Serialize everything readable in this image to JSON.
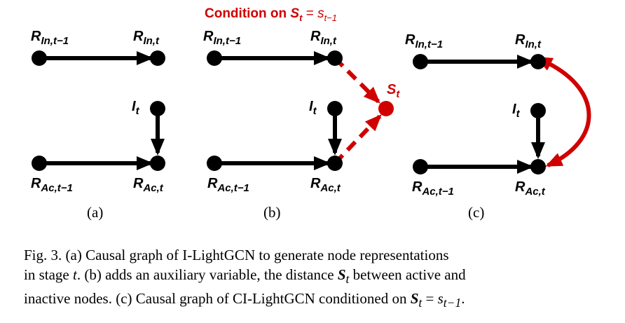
{
  "labels": {
    "r_in_prev": "R",
    "r_in_prev_sub": "In,t−1",
    "r_in_cur": "R",
    "r_in_cur_sub": "In,t",
    "i_t": "I",
    "i_t_sub": "t",
    "r_ac_prev": "R",
    "r_ac_prev_sub": "Ac,t−1",
    "r_ac_cur": "R",
    "r_ac_cur_sub": "Ac,t",
    "s_t": "S",
    "s_t_sub": "t"
  },
  "condition": {
    "text": "Condition on ",
    "s": "S",
    "s_sub": "t",
    "eq": " = ",
    "s_lower": "s",
    "s_lower_sub": "t−1"
  },
  "panels": [
    "(a)",
    "(b)",
    "(c)"
  ],
  "caption": {
    "line1": "Fig. 3.    (a) Causal graph of I-LightGCN to generate node representations",
    "line2a": "in stage ",
    "line2_t": "t",
    "line2b": ". (b) adds an auxiliary variable, the distance ",
    "line2_S": "S",
    "line2_S_sub": "t",
    "line2c": " between active and",
    "line3a": "inactive nodes. (c) Causal graph of CI-LightGCN conditioned on ",
    "line3_S": "S",
    "line3_S_sub": "t",
    "line3_eq": " = ",
    "line3_s": "s",
    "line3_s_sub": "t−1",
    "line3_end": "."
  },
  "colors": {
    "node": "#000000",
    "highlight": "#d00000"
  }
}
